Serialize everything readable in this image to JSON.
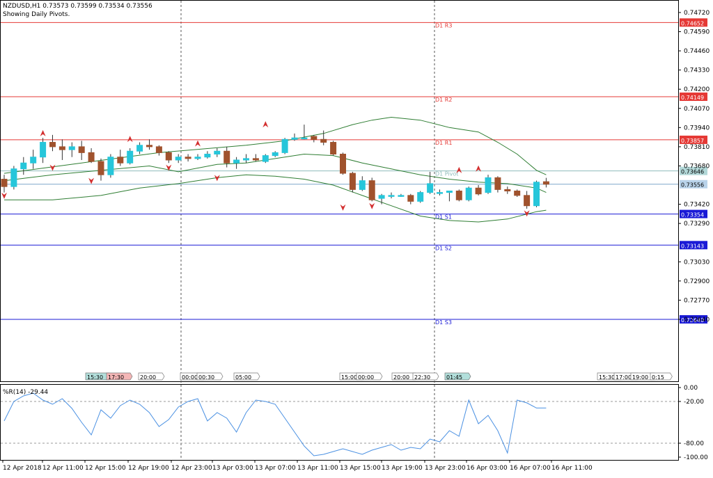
{
  "header": {
    "symbol_line": "NZDUSD,H1  0.73573 0.73599 0.73534 0.73556",
    "subtitle": "Showing Daily Pivots."
  },
  "colors": {
    "bull": "#26c6da",
    "bear": "#a0522d",
    "resistance": "#e53935",
    "support": "#1a1ad6",
    "pivot": "#8fbcbb",
    "bands": "#2e7d32",
    "wpr": "#4a90e2",
    "fractal": "#d32f2f"
  },
  "chart_data": [
    {
      "type": "candlestick",
      "title": "NZDUSD,H1",
      "ylim": [
        0.7222,
        0.748
      ],
      "y_ticks": [
        "0.74720",
        "0.74590",
        "0.74460",
        "0.74330",
        "0.74200",
        "0.74070",
        "0.73940",
        "0.73810",
        "0.73680",
        "0.73420",
        "0.73290",
        "0.73030",
        "0.72900",
        "0.72770",
        "0.72640"
      ],
      "pivots": [
        {
          "name": "D1 R3",
          "value": 0.74652,
          "label": "0.74652",
          "kind": "resistance"
        },
        {
          "name": "D1 R2",
          "value": 0.74149,
          "label": "0.74149",
          "kind": "resistance"
        },
        {
          "name": "D1 R1",
          "value": 0.73857,
          "label": "0.73857",
          "kind": "resistance"
        },
        {
          "name": "D1 Pivot",
          "value": 0.73646,
          "label": "0.73646",
          "kind": "pivot"
        },
        {
          "name": "D1 S1",
          "value": 0.73354,
          "label": "0.73354",
          "kind": "support"
        },
        {
          "name": "D1 S2",
          "value": 0.73143,
          "label": "0.73143",
          "kind": "support"
        },
        {
          "name": "D1 S3",
          "value": 0.7264,
          "label": "0.72640",
          "kind": "support"
        }
      ],
      "current_price": {
        "value": 0.73556,
        "label": "0.73556"
      },
      "candles": [
        [
          0.7359,
          0.7362,
          0.735,
          0.7354
        ],
        [
          0.7354,
          0.7368,
          0.7352,
          0.7366
        ],
        [
          0.7366,
          0.7374,
          0.7362,
          0.737
        ],
        [
          0.737,
          0.7379,
          0.7366,
          0.7374
        ],
        [
          0.7374,
          0.7387,
          0.737,
          0.7384
        ],
        [
          0.7384,
          0.7389,
          0.7378,
          0.7381
        ],
        [
          0.7381,
          0.7386,
          0.7372,
          0.7379
        ],
        [
          0.7379,
          0.7384,
          0.7374,
          0.7381
        ],
        [
          0.7381,
          0.7385,
          0.7372,
          0.7377
        ],
        [
          0.7377,
          0.738,
          0.737,
          0.7371
        ],
        [
          0.7371,
          0.7373,
          0.7358,
          0.7362
        ],
        [
          0.7362,
          0.7376,
          0.736,
          0.7374
        ],
        [
          0.7374,
          0.7379,
          0.7368,
          0.737
        ],
        [
          0.737,
          0.738,
          0.7369,
          0.7378
        ],
        [
          0.7378,
          0.7384,
          0.7376,
          0.7382
        ],
        [
          0.7382,
          0.7386,
          0.7379,
          0.7381
        ],
        [
          0.7381,
          0.7382,
          0.7375,
          0.7377
        ],
        [
          0.7377,
          0.7378,
          0.737,
          0.7372
        ],
        [
          0.7372,
          0.7376,
          0.737,
          0.7374
        ],
        [
          0.7374,
          0.7376,
          0.7371,
          0.7373
        ],
        [
          0.7373,
          0.7376,
          0.7372,
          0.7374
        ],
        [
          0.7374,
          0.7378,
          0.7373,
          0.7376
        ],
        [
          0.7376,
          0.738,
          0.7374,
          0.7378
        ],
        [
          0.7378,
          0.7381,
          0.7367,
          0.737
        ],
        [
          0.737,
          0.7374,
          0.7366,
          0.7372
        ],
        [
          0.7372,
          0.7376,
          0.737,
          0.7373
        ],
        [
          0.7373,
          0.7376,
          0.7371,
          0.7372
        ],
        [
          0.7371,
          0.7376,
          0.737,
          0.7375
        ],
        [
          0.7375,
          0.7378,
          0.7374,
          0.7377
        ],
        [
          0.7377,
          0.7387,
          0.7376,
          0.7386
        ],
        [
          0.7386,
          0.739,
          0.7385,
          0.7387
        ],
        [
          0.7387,
          0.7396,
          0.7386,
          0.7387
        ],
        [
          0.7388,
          0.7389,
          0.7384,
          0.7386
        ],
        [
          0.7386,
          0.7392,
          0.7382,
          0.7384
        ],
        [
          0.7384,
          0.7385,
          0.7375,
          0.7376
        ],
        [
          0.7376,
          0.7377,
          0.7362,
          0.7363
        ],
        [
          0.7363,
          0.7364,
          0.735,
          0.7352
        ],
        [
          0.7352,
          0.7361,
          0.7351,
          0.7358
        ],
        [
          0.7358,
          0.736,
          0.7344,
          0.7345
        ],
        [
          0.7346,
          0.7349,
          0.7342,
          0.7348
        ],
        [
          0.7348,
          0.735,
          0.7346,
          0.7348
        ],
        [
          0.7348,
          0.7349,
          0.7347,
          0.7348
        ],
        [
          0.7348,
          0.7349,
          0.7342,
          0.7344
        ],
        [
          0.7344,
          0.7351,
          0.7343,
          0.735
        ],
        [
          0.735,
          0.7364,
          0.7349,
          0.7356
        ],
        [
          0.735,
          0.7352,
          0.7348,
          0.735
        ],
        [
          0.735,
          0.7351,
          0.7344,
          0.7351
        ],
        [
          0.7351,
          0.7352,
          0.7344,
          0.7345
        ],
        [
          0.7345,
          0.7354,
          0.7344,
          0.7353
        ],
        [
          0.7353,
          0.7355,
          0.7348,
          0.7349
        ],
        [
          0.735,
          0.7362,
          0.7349,
          0.736
        ],
        [
          0.736,
          0.7361,
          0.735,
          0.7352
        ],
        [
          0.7352,
          0.7354,
          0.7349,
          0.7351
        ],
        [
          0.7351,
          0.7352,
          0.7347,
          0.7348
        ],
        [
          0.7348,
          0.7351,
          0.7339,
          0.7341
        ],
        [
          0.7341,
          0.7358,
          0.734,
          0.7357
        ],
        [
          0.73573,
          0.73599,
          0.73534,
          0.73556
        ]
      ],
      "bollinger_upper": [
        [
          0,
          0.7363
        ],
        [
          8,
          0.737
        ],
        [
          16,
          0.7377
        ],
        [
          25,
          0.7382
        ],
        [
          29,
          0.7385
        ],
        [
          33,
          0.739
        ],
        [
          36,
          0.7396
        ],
        [
          38,
          0.7399
        ],
        [
          40,
          0.7401
        ],
        [
          43,
          0.7399
        ],
        [
          46,
          0.7394
        ],
        [
          49,
          0.7391
        ],
        [
          51,
          0.7384
        ],
        [
          53,
          0.7376
        ],
        [
          55,
          0.7365
        ],
        [
          56,
          0.7362
        ]
      ],
      "bollinger_middle": [
        [
          0,
          0.7358
        ],
        [
          5,
          0.7362
        ],
        [
          10,
          0.7365
        ],
        [
          15,
          0.7368
        ],
        [
          18,
          0.7364
        ],
        [
          22,
          0.7369
        ],
        [
          25,
          0.737
        ],
        [
          28,
          0.7373
        ],
        [
          31,
          0.7376
        ],
        [
          34,
          0.7375
        ],
        [
          37,
          0.737
        ],
        [
          40,
          0.7366
        ],
        [
          43,
          0.7362
        ],
        [
          46,
          0.7359
        ],
        [
          49,
          0.7357
        ],
        [
          52,
          0.7356
        ],
        [
          55,
          0.7353
        ],
        [
          56,
          0.735
        ]
      ],
      "bollinger_lower": [
        [
          0,
          0.7345
        ],
        [
          5,
          0.7345
        ],
        [
          10,
          0.7348
        ],
        [
          14,
          0.7353
        ],
        [
          18,
          0.7356
        ],
        [
          22,
          0.736
        ],
        [
          25,
          0.7362
        ],
        [
          28,
          0.7361
        ],
        [
          31,
          0.7359
        ],
        [
          34,
          0.7355
        ],
        [
          37,
          0.7348
        ],
        [
          40,
          0.7341
        ],
        [
          43,
          0.7334
        ],
        [
          46,
          0.7331
        ],
        [
          49,
          0.733
        ],
        [
          52,
          0.7332
        ],
        [
          55,
          0.7337
        ],
        [
          56,
          0.7338
        ]
      ],
      "fractals_up": [
        [
          4,
          0.739
        ],
        [
          13,
          0.7386
        ],
        [
          20,
          0.7383
        ],
        [
          27,
          0.7396
        ],
        [
          47,
          0.7365
        ],
        [
          49,
          0.7366
        ]
      ],
      "fractals_down": [
        [
          0,
          0.7348
        ],
        [
          5,
          0.7367
        ],
        [
          9,
          0.7358
        ],
        [
          17,
          0.7367
        ],
        [
          22,
          0.736
        ],
        [
          35,
          0.734
        ],
        [
          38,
          0.7341
        ],
        [
          54,
          0.7336
        ]
      ]
    },
    {
      "type": "line",
      "title": "%R(14) -29.44",
      "ylim": [
        -100,
        0
      ],
      "y_ticks": [
        "0.00",
        "-20.00",
        "-80.00",
        "-100.00"
      ],
      "levels": [
        -20,
        -80
      ],
      "x": [
        0,
        1,
        2,
        3,
        4,
        5,
        6,
        7,
        8,
        9,
        10,
        11,
        12,
        13,
        14,
        15,
        16,
        17,
        18,
        19,
        20,
        21,
        22,
        23,
        24,
        25,
        26,
        27,
        28,
        29,
        30,
        31,
        32,
        33,
        34,
        35,
        36,
        37,
        38,
        39,
        40,
        41,
        42,
        43,
        44,
        45,
        46,
        47,
        48,
        49,
        50,
        51,
        52,
        53,
        54,
        55,
        56
      ],
      "values": [
        -48,
        -20,
        -12,
        -8,
        -18,
        -24,
        -16,
        -30,
        -50,
        -68,
        -32,
        -44,
        -26,
        -18,
        -24,
        -36,
        -56,
        -46,
        -28,
        -20,
        -16,
        -48,
        -36,
        -44,
        -64,
        -36,
        -18,
        -20,
        -24,
        -44,
        -64,
        -84,
        -98,
        -96,
        -92,
        -88,
        -92,
        -96,
        -90,
        -86,
        -82,
        -90,
        -86,
        -88,
        -74,
        -78,
        -62,
        -70,
        -18,
        -52,
        -40,
        -62,
        -94,
        -18,
        -22,
        -29.44,
        -29.44
      ]
    }
  ],
  "x_axis": {
    "labels": [
      "12 Apr 2018",
      "12 Apr 11:00",
      "12 Apr 15:00",
      "12 Apr 19:00",
      "12 Apr 23:00",
      "13 Apr 03:00",
      "13 Apr 07:00",
      "13 Apr 11:00",
      "13 Apr 15:00",
      "13 Apr 19:00",
      "13 Apr 23:00",
      "16 Apr 03:00",
      "16 Apr 07:00",
      "16 Apr 11:00"
    ]
  },
  "time_markers": [
    "15:30",
    "17:30",
    "20:00",
    "00:00",
    "00:30",
    "05:00",
    "15:00",
    "00:00",
    "20:00",
    "22:30",
    "01:45",
    "15:30",
    "17:00",
    "19:00",
    "0:15"
  ]
}
